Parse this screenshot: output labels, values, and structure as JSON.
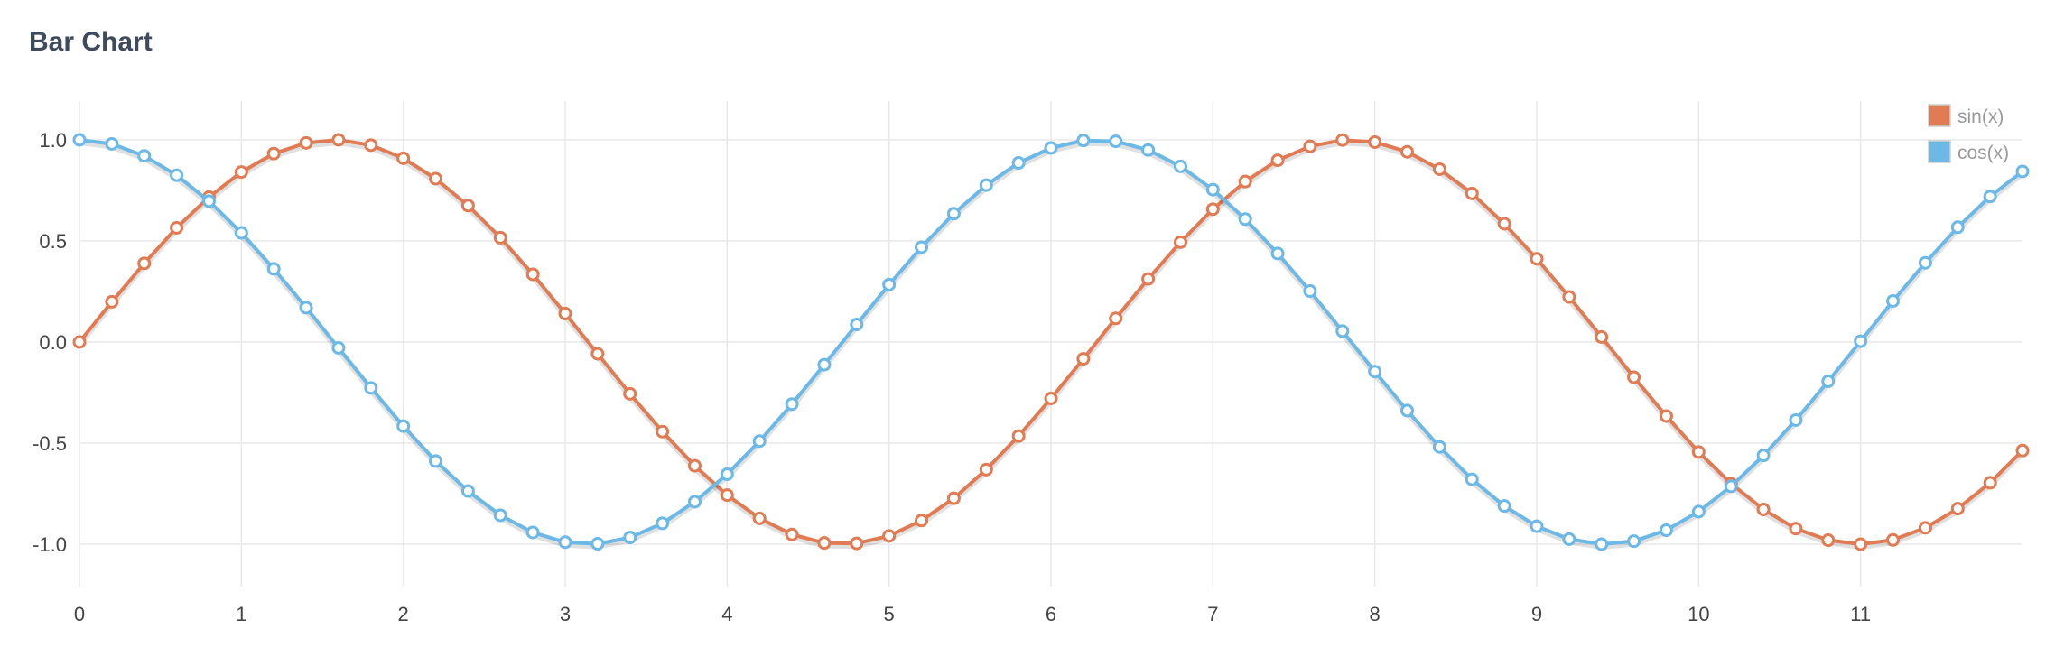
{
  "chart_data": {
    "type": "line",
    "title": "Bar Chart",
    "xlabel": "",
    "ylabel": "",
    "xlim": [
      0,
      12
    ],
    "ylim": [
      -1.2,
      1.2
    ],
    "x_ticks": [
      0,
      1,
      2,
      3,
      4,
      5,
      6,
      7,
      8,
      9,
      10,
      11
    ],
    "x_tick_labels": [
      "0",
      "1",
      "2",
      "3",
      "4",
      "5",
      "6",
      "7",
      "8",
      "9",
      "10",
      "11"
    ],
    "y_ticks": [
      1.0,
      0.5,
      0.0,
      -0.5,
      -1.0
    ],
    "y_tick_labels": [
      "1.0",
      "0.5",
      "0.0",
      "-0.5",
      "-1.0"
    ],
    "grid": true,
    "legend_position": "top-right",
    "x": [
      0.0,
      0.2,
      0.4,
      0.6,
      0.8,
      1.0,
      1.2,
      1.4,
      1.6,
      1.8,
      2.0,
      2.2,
      2.4,
      2.6,
      2.8,
      3.0,
      3.2,
      3.4,
      3.6,
      3.8,
      4.0,
      4.2,
      4.4,
      4.6,
      4.8,
      5.0,
      5.2,
      5.4,
      5.6,
      5.8,
      6.0,
      6.2,
      6.4,
      6.6,
      6.8,
      7.0,
      7.2,
      7.4,
      7.6,
      7.8,
      8.0,
      8.2,
      8.4,
      8.6,
      8.8,
      9.0,
      9.2,
      9.4,
      9.6,
      9.8,
      10.0,
      10.2,
      10.4,
      10.6,
      10.8,
      11.0,
      11.2,
      11.4,
      11.6,
      11.8,
      12.0
    ],
    "series": [
      {
        "name": "sin(x)",
        "color": "#e07b53",
        "values": [
          0.0,
          0.199,
          0.389,
          0.565,
          0.717,
          0.841,
          0.932,
          0.985,
          1.0,
          0.974,
          0.909,
          0.808,
          0.675,
          0.516,
          0.335,
          0.141,
          -0.058,
          -0.256,
          -0.443,
          -0.612,
          -0.757,
          -0.872,
          -0.952,
          -0.994,
          -0.996,
          -0.959,
          -0.883,
          -0.773,
          -0.631,
          -0.465,
          -0.279,
          -0.083,
          0.117,
          0.312,
          0.494,
          0.657,
          0.794,
          0.899,
          0.968,
          0.999,
          0.989,
          0.941,
          0.855,
          0.735,
          0.585,
          0.412,
          0.223,
          0.025,
          -0.174,
          -0.366,
          -0.544,
          -0.7,
          -0.828,
          -0.923,
          -0.98,
          -1.0,
          -0.979,
          -0.919,
          -0.824,
          -0.696,
          -0.537
        ]
      },
      {
        "name": "cos(x)",
        "color": "#6cb8e6",
        "values": [
          1.0,
          0.98,
          0.921,
          0.825,
          0.697,
          0.54,
          0.362,
          0.17,
          -0.029,
          -0.227,
          -0.416,
          -0.589,
          -0.737,
          -0.857,
          -0.942,
          -0.99,
          -0.998,
          -0.967,
          -0.897,
          -0.79,
          -0.654,
          -0.49,
          -0.307,
          -0.112,
          0.087,
          0.284,
          0.469,
          0.635,
          0.776,
          0.886,
          0.96,
          0.997,
          0.993,
          0.95,
          0.869,
          0.754,
          0.608,
          0.438,
          0.252,
          0.054,
          -0.146,
          -0.339,
          -0.519,
          -0.679,
          -0.811,
          -0.911,
          -0.975,
          -1.0,
          -0.985,
          -0.931,
          -0.839,
          -0.714,
          -0.561,
          -0.386,
          -0.194,
          0.004,
          0.203,
          0.392,
          0.568,
          0.72,
          0.844
        ]
      }
    ]
  }
}
